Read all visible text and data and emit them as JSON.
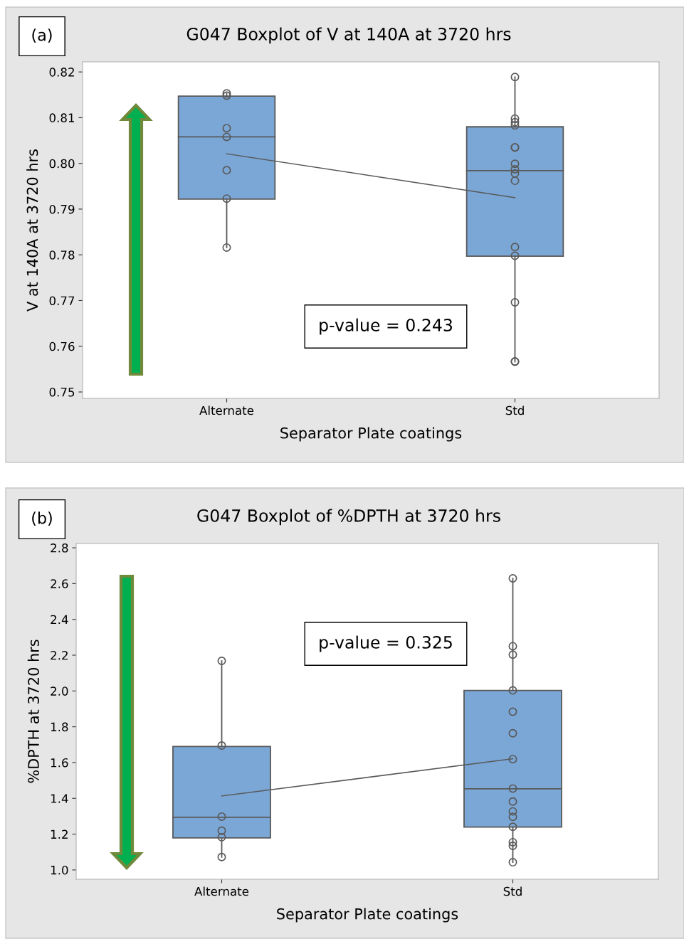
{
  "chart_data": [
    {
      "type": "box",
      "title": "G047 Boxplot of V at 140A at 3720 hrs",
      "xlabel": "Separator Plate coatings",
      "ylabel": "V at 140A at 3720 hrs",
      "categories": [
        "Alternate",
        "Std"
      ],
      "color": "#7ba7d7",
      "boxes": [
        {
          "low": 0.7816,
          "q1": 0.7922,
          "median": 0.8058,
          "q3": 0.8147,
          "high": 0.8153
        },
        {
          "low": 0.7566,
          "q1": 0.7797,
          "median": 0.7984,
          "q3": 0.808,
          "high": 0.8189
        }
      ],
      "series": [
        {
          "type": "line",
          "color": "#595959",
          "x": [
            "Alternate",
            "Std"
          ],
          "values": [
            0.8021,
            0.7925
          ]
        },
        {
          "type": "scatter",
          "color": "#595959",
          "marker": "circle",
          "x": [
            "Alternate",
            "Alternate",
            "Alternate",
            "Alternate",
            "Alternate",
            "Alternate",
            "Alternate",
            "Std",
            "Std",
            "Std",
            "Std",
            "Std",
            "Std",
            "Std",
            "Std",
            "Std",
            "Std",
            "Std",
            "Std",
            "Std",
            "Std",
            "Std"
          ],
          "values": [
            0.8153,
            0.8148,
            0.8077,
            0.8058,
            0.7985,
            0.7923,
            0.7816,
            0.8189,
            0.8098,
            0.809,
            0.8083,
            0.8035,
            0.8035,
            0.7999,
            0.7987,
            0.7978,
            0.7962,
            0.7817,
            0.7798,
            0.7696,
            0.7567,
            0.7566
          ]
        }
      ],
      "ylim": [
        0.7486,
        0.8222
      ],
      "yticks": [
        0.75,
        0.76,
        0.77,
        0.78,
        0.79,
        {
          "value": 0.8,
          "label": "0.80"
        },
        0.81,
        0.82
      ],
      "annotations": [
        "(a)",
        "p-value = 0.243"
      ],
      "grid": false,
      "legend": false
    },
    {
      "type": "box",
      "title": "G047 Boxplot of %DPTH at 3720 hrs",
      "xlabel": "Separator Plate coatings",
      "ylabel": "%DPTH at 3720 hrs",
      "categories": [
        "Alternate",
        "Std"
      ],
      "color": "#7ba7d7",
      "boxes": [
        {
          "low": 1.072,
          "q1": 1.179,
          "median": 1.294,
          "q3": 1.69,
          "high": 2.168
        },
        {
          "low": 1.043,
          "q1": 1.24,
          "median": 1.453,
          "q3": 2.003,
          "high": 2.629
        }
      ],
      "series": [
        {
          "type": "line",
          "color": "#595959",
          "x": [
            "Alternate",
            "Std"
          ],
          "values": [
            1.413,
            1.621
          ]
        },
        {
          "type": "scatter",
          "color": "#595959",
          "marker": "circle",
          "x": [
            "Alternate",
            "Alternate",
            "Alternate",
            "Alternate",
            "Alternate",
            "Alternate",
            "Std",
            "Std",
            "Std",
            "Std",
            "Std",
            "Std",
            "Std",
            "Std",
            "Std",
            "Std",
            "Std",
            "Std",
            "Std",
            "Std",
            "Std"
          ],
          "values": [
            2.168,
            1.695,
            1.298,
            1.219,
            1.183,
            1.072,
            2.629,
            2.25,
            2.203,
            2.003,
            1.884,
            1.764,
            1.619,
            1.455,
            1.382,
            1.327,
            1.297,
            1.241,
            1.155,
            1.135,
            1.043
          ]
        }
      ],
      "ylim": [
        0.948,
        2.824
      ],
      "yticks": [
        {
          "value": 1.0,
          "label": "1.0"
        },
        1.2,
        1.4,
        1.6,
        1.8,
        {
          "value": 2.0,
          "label": "2.0"
        },
        2.2,
        2.4,
        2.6,
        2.8
      ],
      "annotations": [
        "(b)",
        "p-value = 0.325"
      ],
      "grid": false,
      "legend": false
    }
  ]
}
